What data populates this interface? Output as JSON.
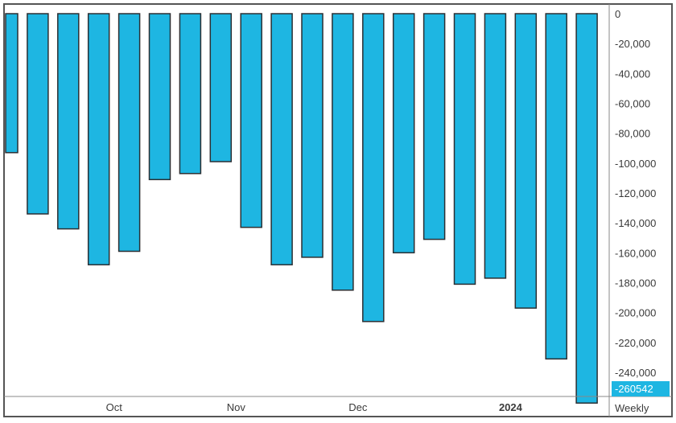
{
  "chart_data": {
    "type": "bar",
    "frequency_label": "Weekly",
    "series": [
      {
        "values": [
          -93000,
          -134000,
          -144000,
          -168000,
          -159000,
          -111000,
          -107000,
          -99000,
          -143000,
          -168000,
          -163000,
          -185000,
          -206000,
          -160000,
          -151000,
          -181000,
          -177000,
          -197000,
          -231000,
          -260542
        ]
      }
    ],
    "ylim": [
      -268000,
      2000
    ],
    "y_ticks": [
      0,
      -20000,
      -40000,
      -60000,
      -80000,
      -100000,
      -120000,
      -140000,
      -160000,
      -180000,
      -200000,
      -220000,
      -240000
    ],
    "y_tick_labels": [
      "0",
      "-20,000",
      "-40,000",
      "-60,000",
      "-80,000",
      "-100,000",
      "-120,000",
      "-140,000",
      "-160,000",
      "-180,000",
      "-200,000",
      "-220,000",
      "-240,000"
    ],
    "x_tick_labels": [
      {
        "label": "Oct",
        "after_bar": 3,
        "bold": false
      },
      {
        "label": "Nov",
        "after_bar": 7,
        "bold": false
      },
      {
        "label": "Dec",
        "after_bar": 11,
        "bold": false
      },
      {
        "label": "2024",
        "after_bar": 16,
        "bold": true
      }
    ],
    "last_value_label": "-260542",
    "grid": false,
    "legend": "none"
  },
  "colors": {
    "bar_fill": "#1eb6e2",
    "bar_stroke": "#2b2f33",
    "last_value_box": "#1eb6e2"
  }
}
